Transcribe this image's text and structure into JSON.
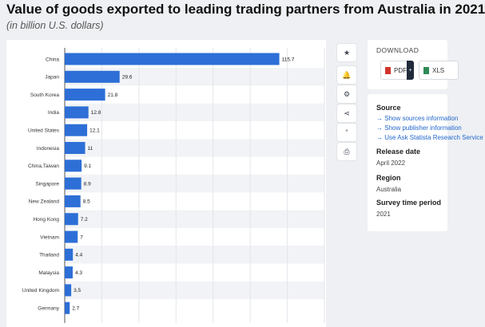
{
  "header": {
    "title": "Value of goods exported to leading trading partners from Australia in 2021",
    "subtitle": "(in billion U.S. dollars)"
  },
  "chart_data": {
    "type": "bar",
    "orientation": "horizontal",
    "categories": [
      "China",
      "Japan",
      "South Korea",
      "India",
      "United States",
      "Indonesia",
      "China,Taiwan",
      "Singapore",
      "New Zealand",
      "Hong Kong",
      "Vietnam",
      "Thailand",
      "Malaysia",
      "United Kingdom",
      "Germany"
    ],
    "values": [
      115.7,
      29.6,
      21.8,
      12.8,
      12.1,
      11,
      9.1,
      8.9,
      8.5,
      7.2,
      7,
      4.4,
      4.3,
      3.5,
      2.7
    ],
    "value_labels": [
      "115.7",
      "29.6",
      "21.8",
      "12.8",
      "12.1",
      "11",
      "9.1",
      "8.9",
      "8.5",
      "7.2",
      "7",
      "4.4",
      "4.3",
      "3.5",
      "2.7"
    ],
    "bar_color": "#2d6fd6",
    "xlim": [
      0,
      140
    ],
    "grid": true
  },
  "actions": [
    {
      "name": "favorite",
      "icon": "star-icon",
      "glyph": "★"
    },
    {
      "name": "notification",
      "icon": "bell-icon",
      "glyph": "🔔"
    },
    {
      "name": "settings",
      "icon": "gear-icon",
      "glyph": "⚙"
    },
    {
      "name": "share",
      "icon": "share-icon",
      "glyph": "⋖"
    },
    {
      "name": "cite",
      "icon": "quote-icon",
      "glyph": "“"
    },
    {
      "name": "print",
      "icon": "print-icon",
      "glyph": "⎙"
    }
  ],
  "download": {
    "heading": "DOWNLOAD",
    "pdf_label": "PDF",
    "xls_label": "XLS",
    "caret": "+"
  },
  "info": {
    "source_heading": "Source",
    "links": [
      "Show sources information",
      "Show publisher information",
      "Use Ask Statista Research Service"
    ],
    "release_heading": "Release date",
    "release_value": "April 2022",
    "region_heading": "Region",
    "region_value": "Australia",
    "survey_heading": "Survey time period",
    "survey_value": "2021"
  }
}
